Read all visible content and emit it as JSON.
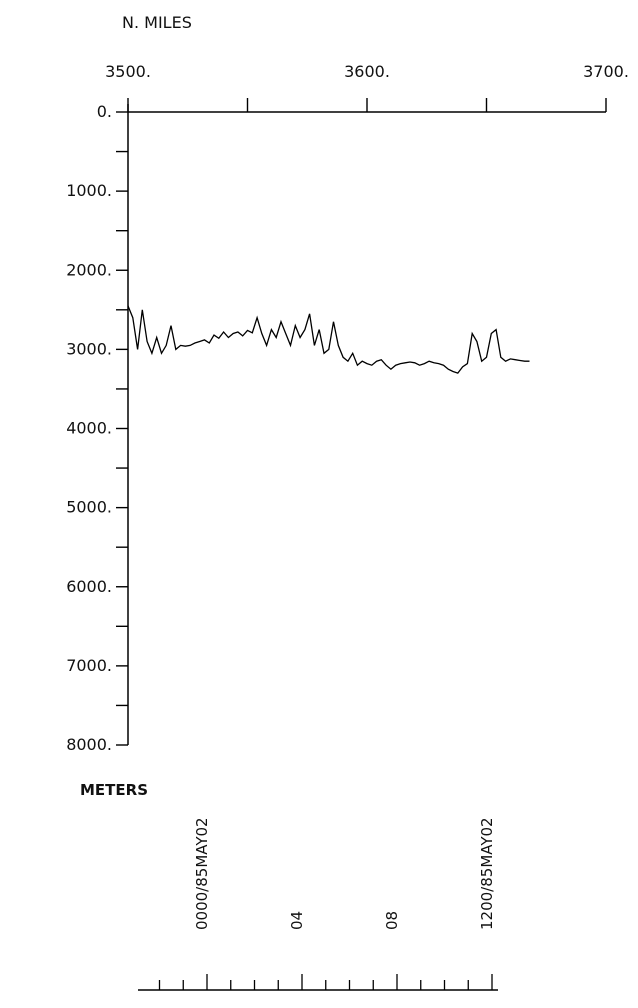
{
  "chart_data": {
    "type": "line",
    "x_axis": {
      "label": "N. MILES",
      "position": "top",
      "range": [
        3500,
        3700
      ],
      "ticks": [
        3500,
        3600,
        3700
      ],
      "tick_labels": [
        "3500.",
        "3600.",
        "3700."
      ]
    },
    "y_axis": {
      "label": "METERS",
      "inverted": true,
      "range": [
        0,
        8000
      ],
      "ticks": [
        0,
        1000,
        2000,
        3000,
        4000,
        5000,
        6000,
        7000,
        8000
      ],
      "tick_labels": [
        "0.",
        "1000.",
        "2000.",
        "3000.",
        "4000.",
        "5000.",
        "6000.",
        "7000.",
        "8000."
      ]
    },
    "series": [
      {
        "x": [
          3500,
          3502,
          3504,
          3506,
          3508,
          3510,
          3512,
          3514,
          3516,
          3518,
          3520,
          3522,
          3524,
          3526,
          3528,
          3530,
          3532,
          3534,
          3536,
          3538,
          3540,
          3542,
          3544,
          3546,
          3548,
          3550,
          3552,
          3554,
          3556,
          3558,
          3560,
          3562,
          3564,
          3566,
          3568,
          3570,
          3572,
          3574,
          3576,
          3578,
          3580,
          3582,
          3584,
          3586,
          3588,
          3590,
          3592,
          3594,
          3596,
          3598,
          3600,
          3602,
          3604,
          3606,
          3608,
          3610,
          3612,
          3614,
          3616,
          3618,
          3620,
          3622,
          3624,
          3626,
          3628,
          3630,
          3632,
          3634,
          3636,
          3638,
          3640,
          3642,
          3644,
          3646,
          3648,
          3650,
          3652,
          3654,
          3656,
          3658,
          3660,
          3662,
          3664,
          3666,
          3668
        ],
        "y": [
          2450,
          2600,
          3000,
          2500,
          2900,
          3050,
          2850,
          3050,
          2950,
          2700,
          3000,
          2950,
          2960,
          2950,
          2920,
          2900,
          2880,
          2920,
          2820,
          2860,
          2780,
          2850,
          2800,
          2780,
          2830,
          2760,
          2790,
          2600,
          2800,
          2950,
          2750,
          2850,
          2650,
          2800,
          2950,
          2700,
          2850,
          2750,
          2550,
          2950,
          2750,
          3050,
          3000,
          2650,
          2950,
          3100,
          3150,
          3050,
          3200,
          3150,
          3180,
          3200,
          3150,
          3130,
          3200,
          3250,
          3200,
          3180,
          3170,
          3160,
          3170,
          3200,
          3180,
          3150,
          3170,
          3180,
          3200,
          3250,
          3280,
          3300,
          3220,
          3180,
          2800,
          2900,
          3150,
          3100,
          2800,
          2750,
          3100,
          3150,
          3120,
          3130,
          3140,
          3150,
          3150
        ]
      }
    ],
    "grid": false
  },
  "time_axis": {
    "labels": [
      "0000/85MAY02",
      "04",
      "08",
      "1200/85MAY02"
    ],
    "hours": [
      0,
      4,
      8,
      12
    ]
  }
}
